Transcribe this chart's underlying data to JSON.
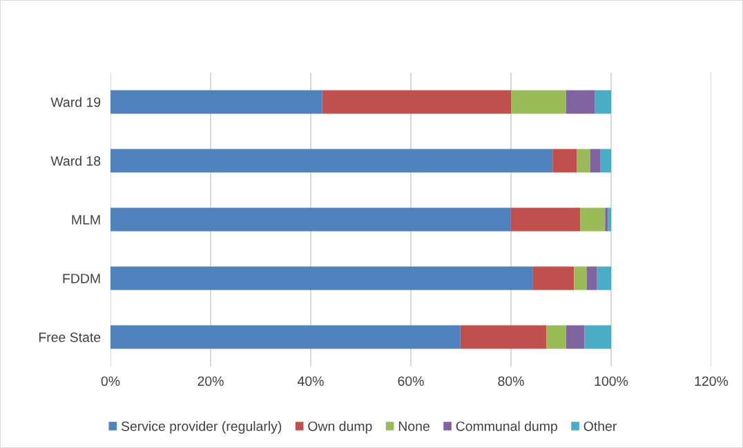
{
  "chart_data": {
    "type": "bar",
    "orientation": "horizontal",
    "stacked": true,
    "categories": [
      "Ward 19",
      "Ward 18",
      "MLM",
      "FDDM",
      "Free State"
    ],
    "series": [
      {
        "name": "Service provider (regularly)",
        "color": "#4f81bd",
        "values": [
          42.3,
          88.3,
          79.9,
          84.3,
          69.9
        ]
      },
      {
        "name": "Own dump",
        "color": "#c0504d",
        "values": [
          37.7,
          4.8,
          13.9,
          8.3,
          17.2
        ]
      },
      {
        "name": "None",
        "color": "#9bbb59",
        "values": [
          11.0,
          2.7,
          5.0,
          2.5,
          3.9
        ]
      },
      {
        "name": "Communal dump",
        "color": "#8064a2",
        "values": [
          5.7,
          2.0,
          0.6,
          2.1,
          3.7
        ]
      },
      {
        "name": "Other",
        "color": "#4bacc6",
        "values": [
          3.3,
          2.2,
          0.6,
          2.8,
          5.3
        ]
      }
    ],
    "xlim": [
      0,
      120
    ],
    "xticks": [
      {
        "value": 0,
        "label": "0%"
      },
      {
        "value": 20,
        "label": "20%"
      },
      {
        "value": 40,
        "label": "40%"
      },
      {
        "value": 60,
        "label": "60%"
      },
      {
        "value": 80,
        "label": "80%"
      },
      {
        "value": 100,
        "label": "100%"
      },
      {
        "value": 120,
        "label": "120%"
      }
    ],
    "grid": "x",
    "legend": "bottom"
  }
}
